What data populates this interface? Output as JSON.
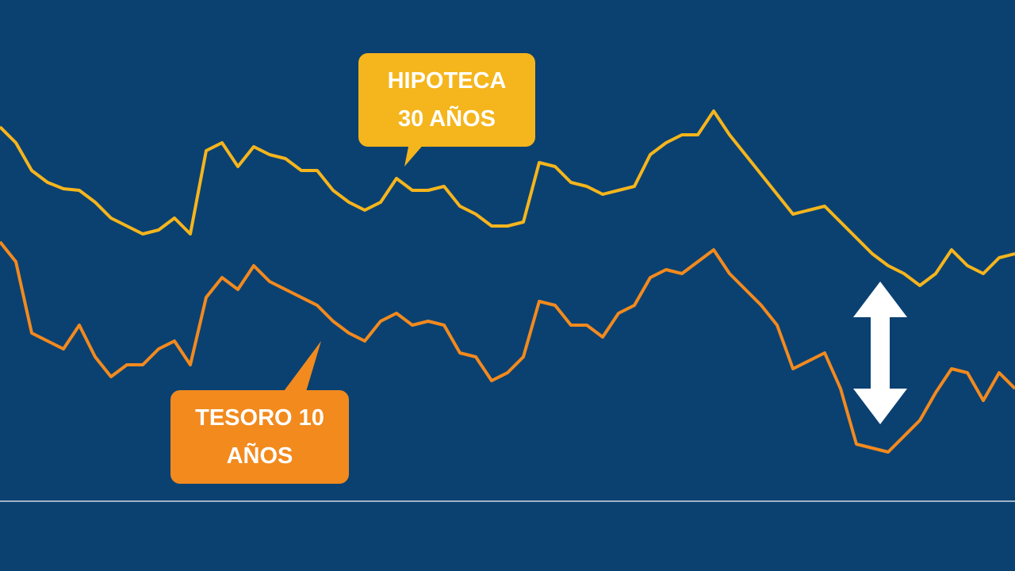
{
  "chart_data": {
    "type": "line",
    "ylim": [
      0,
      632
    ],
    "series": [
      {
        "name": "HIPOTECA 30 AÑOS",
        "color": "#f5b51c",
        "values": [
          472,
          452,
          417,
          402,
          394,
          392,
          377,
          357,
          347,
          337,
          342,
          357,
          337,
          442,
          452,
          422,
          447,
          437,
          432,
          417,
          417,
          392,
          377,
          367,
          377,
          407,
          392,
          392,
          397,
          372,
          362,
          347,
          347,
          352,
          427,
          422,
          402,
          397,
          387,
          392,
          397,
          437,
          452,
          462,
          462,
          492,
          462,
          437,
          412,
          387,
          362,
          367,
          372,
          352,
          332,
          312,
          297,
          287,
          272,
          287,
          317,
          297,
          287,
          307,
          312
        ]
      },
      {
        "name": "TESORO 10 AÑOS",
        "color": "#f28a1e",
        "values": [
          327,
          302,
          212,
          202,
          192,
          222,
          182,
          157,
          172,
          172,
          192,
          202,
          172,
          257,
          282,
          267,
          297,
          277,
          267,
          257,
          247,
          227,
          212,
          202,
          227,
          237,
          222,
          227,
          222,
          187,
          182,
          152,
          162,
          182,
          252,
          247,
          222,
          222,
          207,
          237,
          247,
          282,
          292,
          287,
          302,
          317,
          287,
          267,
          247,
          222,
          167,
          177,
          187,
          142,
          72,
          67,
          62,
          82,
          102,
          137,
          167,
          162,
          127,
          162,
          142
        ]
      }
    ]
  }
}
